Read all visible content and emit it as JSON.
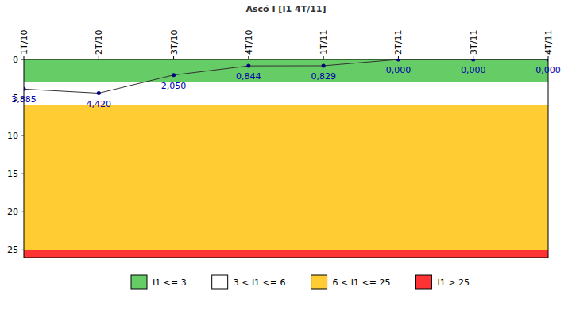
{
  "chart_data": {
    "type": "line",
    "title": "Ascó I [I1 4T/11]",
    "categories": [
      "1T/10",
      "2T/10",
      "3T/10",
      "4T/10",
      "1T/11",
      "2T/11",
      "3T/11",
      "4T/11"
    ],
    "series": [
      {
        "name": "I1",
        "color": "#333333",
        "marker": "circle",
        "values": [
          3.885,
          4.42,
          2.05,
          0.844,
          0.829,
          0,
          0,
          0
        ],
        "value_labels": [
          "3,885",
          "4,420",
          "2,050",
          "0,844",
          "0,829",
          "0,000",
          "0,000",
          "0,000"
        ]
      }
    ],
    "bands": [
      {
        "from": 0,
        "to": 3,
        "color": "#66cc66",
        "label": "I1 <= 3"
      },
      {
        "from": 3,
        "to": 6,
        "color": "#ffffff",
        "label": "3 < I1 <= 6"
      },
      {
        "from": 6,
        "to": 25,
        "color": "#ffcc33",
        "label": "6 < I1 <= 25"
      },
      {
        "from": 25,
        "to": 26,
        "color": "#ff3333",
        "label": "I1 > 25"
      }
    ],
    "ylim": [
      26,
      0
    ],
    "yticks": [
      0,
      5,
      10,
      15,
      20,
      25
    ],
    "grid": false,
    "data_labels": true,
    "legend": "bottom"
  }
}
